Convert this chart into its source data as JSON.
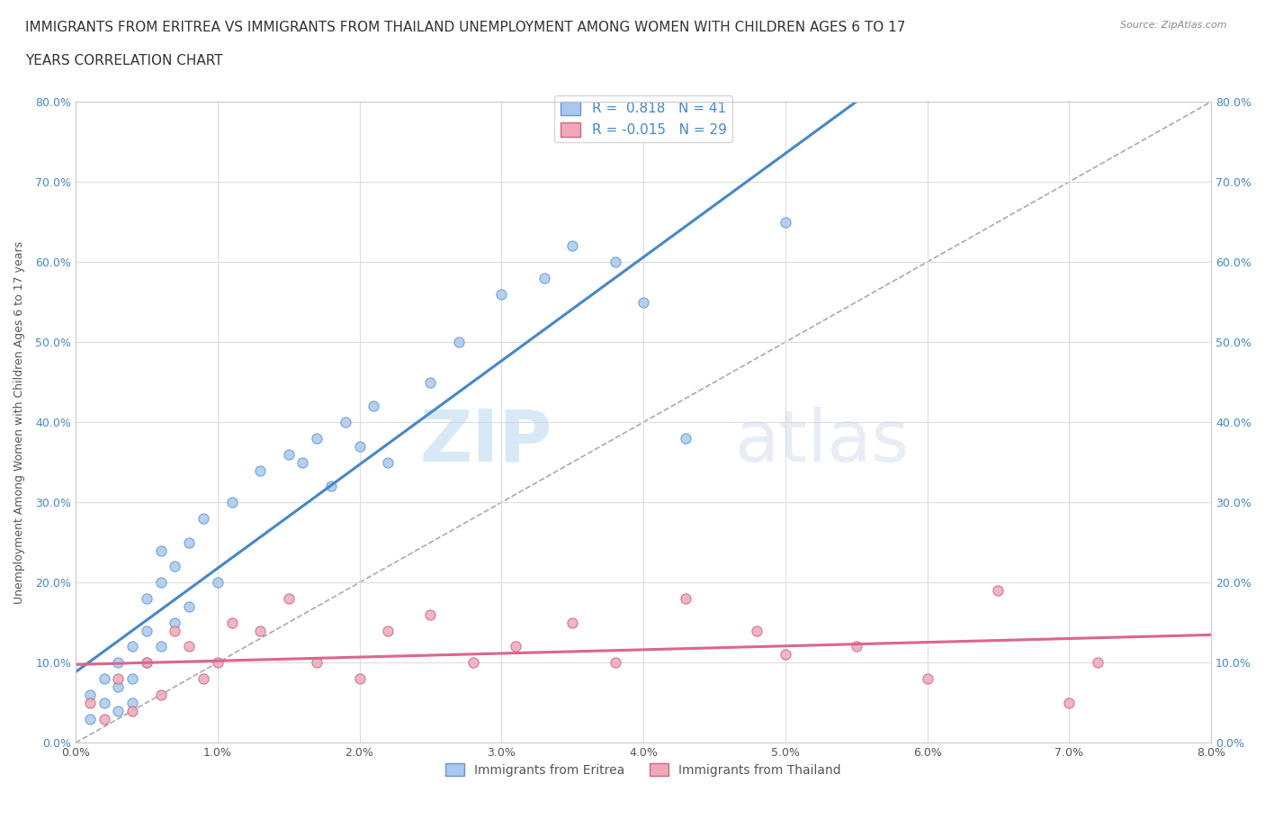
{
  "title_line1": "IMMIGRANTS FROM ERITREA VS IMMIGRANTS FROM THAILAND UNEMPLOYMENT AMONG WOMEN WITH CHILDREN AGES 6 TO 17",
  "title_line2": "YEARS CORRELATION CHART",
  "source": "Source: ZipAtlas.com",
  "ylabel": "Unemployment Among Women with Children Ages 6 to 17 years",
  "xlim": [
    0.0,
    0.08
  ],
  "ylim": [
    0.0,
    0.8
  ],
  "xticks": [
    0.0,
    0.01,
    0.02,
    0.03,
    0.04,
    0.05,
    0.06,
    0.07,
    0.08
  ],
  "yticks": [
    0.0,
    0.1,
    0.2,
    0.3,
    0.4,
    0.5,
    0.6,
    0.7,
    0.8
  ],
  "ytick_labels": [
    "0.0%",
    "10.0%",
    "20.0%",
    "30.0%",
    "40.0%",
    "50.0%",
    "60.0%",
    "70.0%",
    "80.0%"
  ],
  "xtick_labels": [
    "0.0%",
    "1.0%",
    "2.0%",
    "3.0%",
    "4.0%",
    "5.0%",
    "6.0%",
    "7.0%",
    "8.0%"
  ],
  "eritrea_color": "#a8c8f0",
  "thailand_color": "#f0a8b8",
  "eritrea_edge_color": "#6699cc",
  "thailand_edge_color": "#cc6688",
  "trend_eritrea_color": "#4488cc",
  "trend_thailand_color": "#dd6688",
  "diag_color": "#aaaaaa",
  "watermark_zip": "ZIP",
  "watermark_atlas": "atlas",
  "legend_r_eritrea": "0.818",
  "legend_n_eritrea": "41",
  "legend_r_thailand": "-0.015",
  "legend_n_thailand": "29",
  "eritrea_x": [
    0.001,
    0.001,
    0.002,
    0.002,
    0.003,
    0.003,
    0.003,
    0.004,
    0.004,
    0.004,
    0.005,
    0.005,
    0.005,
    0.006,
    0.006,
    0.006,
    0.007,
    0.007,
    0.008,
    0.008,
    0.009,
    0.01,
    0.011,
    0.013,
    0.015,
    0.016,
    0.017,
    0.018,
    0.019,
    0.02,
    0.021,
    0.022,
    0.025,
    0.027,
    0.03,
    0.033,
    0.035,
    0.038,
    0.04,
    0.043,
    0.05
  ],
  "eritrea_y": [
    0.03,
    0.06,
    0.05,
    0.08,
    0.04,
    0.07,
    0.1,
    0.05,
    0.08,
    0.12,
    0.1,
    0.14,
    0.18,
    0.12,
    0.2,
    0.24,
    0.15,
    0.22,
    0.17,
    0.25,
    0.28,
    0.2,
    0.3,
    0.34,
    0.36,
    0.35,
    0.38,
    0.32,
    0.4,
    0.37,
    0.42,
    0.35,
    0.45,
    0.5,
    0.56,
    0.58,
    0.62,
    0.6,
    0.55,
    0.38,
    0.65
  ],
  "thailand_x": [
    0.001,
    0.002,
    0.003,
    0.004,
    0.005,
    0.006,
    0.007,
    0.008,
    0.009,
    0.01,
    0.011,
    0.013,
    0.015,
    0.017,
    0.02,
    0.022,
    0.025,
    0.028,
    0.031,
    0.035,
    0.038,
    0.043,
    0.048,
    0.05,
    0.055,
    0.06,
    0.065,
    0.07,
    0.072
  ],
  "thailand_y": [
    0.05,
    0.03,
    0.08,
    0.04,
    0.1,
    0.06,
    0.14,
    0.12,
    0.08,
    0.1,
    0.15,
    0.14,
    0.18,
    0.1,
    0.08,
    0.14,
    0.16,
    0.1,
    0.12,
    0.15,
    0.1,
    0.18,
    0.14,
    0.11,
    0.12,
    0.08,
    0.19,
    0.05,
    0.1
  ],
  "background_color": "#ffffff",
  "grid_color": "#dddddd",
  "title_fontsize": 11,
  "axis_label_fontsize": 9,
  "tick_fontsize": 9,
  "legend_fontsize": 11
}
